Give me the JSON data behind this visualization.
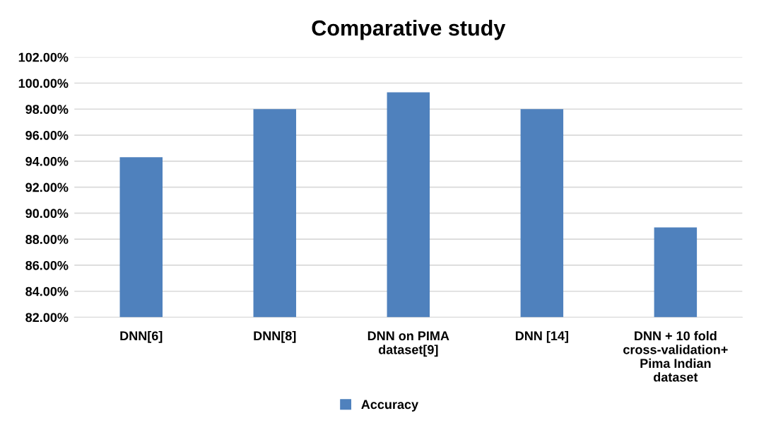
{
  "chart_data": {
    "type": "bar",
    "title": "Comparative study",
    "categories": [
      "DNN[6]",
      "DNN[8]",
      "DNN on PIMA\ndataset[9]",
      "DNN [14]",
      "DNN + 10 fold\ncross-validation+\nPima Indian\ndataset"
    ],
    "series": [
      {
        "name": "Accuracy",
        "color": "#4f81bd",
        "values": [
          94.3,
          98.0,
          99.3,
          98.0,
          88.9
        ]
      }
    ],
    "ylim": [
      82,
      102
    ],
    "yticks": [
      {
        "value": 82,
        "label": "82.00%"
      },
      {
        "value": 84,
        "label": "84.00%"
      },
      {
        "value": 86,
        "label": "86.00%"
      },
      {
        "value": 88,
        "label": "88.00%"
      },
      {
        "value": 90,
        "label": "90.00%"
      },
      {
        "value": 92,
        "label": "92.00%"
      },
      {
        "value": 94,
        "label": "94.00%"
      },
      {
        "value": 96,
        "label": "96.00%"
      },
      {
        "value": 98,
        "label": "98.00%"
      },
      {
        "value": 100,
        "label": "100.00%"
      },
      {
        "value": 102,
        "label": "102.00%"
      }
    ],
    "grid": "y",
    "legend": "bottom"
  }
}
